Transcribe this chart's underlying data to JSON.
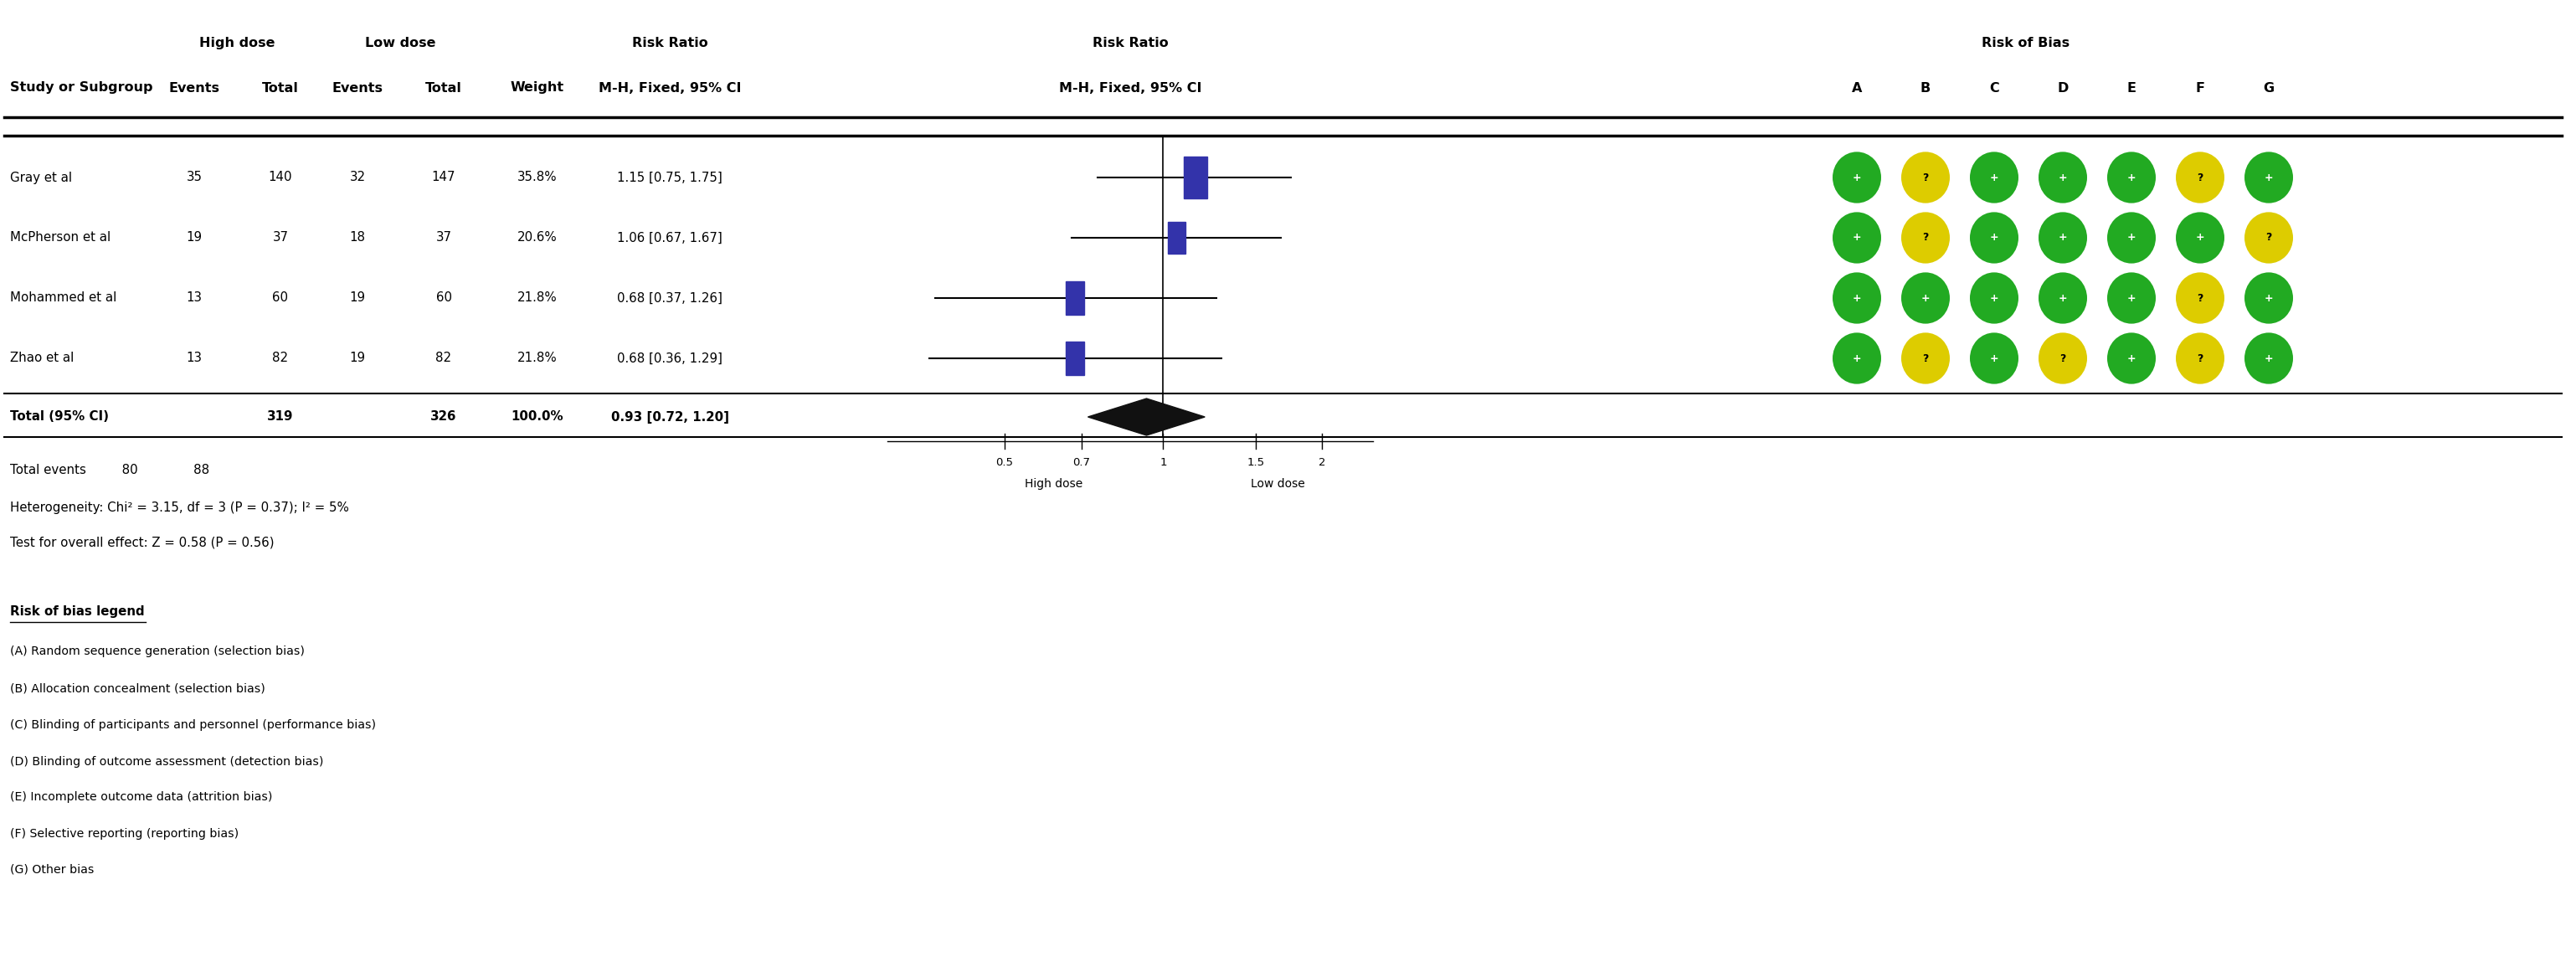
{
  "studies": [
    "Gray et al",
    "McPherson et al",
    "Mohammed et al",
    "Zhao et al"
  ],
  "high_dose_events": [
    35,
    19,
    13,
    13
  ],
  "high_dose_total": [
    140,
    37,
    60,
    82
  ],
  "low_dose_events": [
    32,
    18,
    19,
    19
  ],
  "low_dose_total": [
    147,
    37,
    60,
    82
  ],
  "weights": [
    "35.8%",
    "20.6%",
    "21.8%",
    "21.8%"
  ],
  "rr_text": [
    "1.15 [0.75, 1.75]",
    "1.06 [0.67, 1.67]",
    "0.68 [0.37, 1.26]",
    "0.68 [0.36, 1.29]"
  ],
  "rr_point": [
    1.15,
    1.06,
    0.68,
    0.68
  ],
  "rr_low": [
    0.75,
    0.67,
    0.37,
    0.36
  ],
  "rr_high": [
    1.75,
    1.67,
    1.26,
    1.29
  ],
  "marker_weights": [
    35.8,
    20.6,
    21.8,
    21.8
  ],
  "total_high": 319,
  "total_low": 326,
  "total_weight": "100.0%",
  "total_rr": "0.93 [0.72, 1.20]",
  "total_rr_point": 0.93,
  "total_rr_low": 0.72,
  "total_rr_high": 1.2,
  "total_events_high": 80,
  "total_events_low": 88,
  "heterogeneity": "Heterogeneity: Chi² = 3.15, df = 3 (P = 0.37); I² = 5%",
  "overall_effect": "Test for overall effect: Z = 0.58 (P = 0.56)",
  "forest_xlabel_left": "High dose",
  "forest_xlabel_right": "Low dose",
  "rob_data": [
    [
      "+",
      "?",
      "+",
      "+",
      "+",
      "?",
      "+"
    ],
    [
      "+",
      "?",
      "+",
      "+",
      "+",
      "+",
      "?"
    ],
    [
      "+",
      "+",
      "+",
      "+",
      "+",
      "?",
      "+"
    ],
    [
      "+",
      "?",
      "+",
      "?",
      "+",
      "?",
      "+"
    ]
  ],
  "rob_colors": [
    [
      "green",
      "yellow",
      "green",
      "green",
      "green",
      "yellow",
      "green"
    ],
    [
      "green",
      "yellow",
      "green",
      "green",
      "green",
      "green",
      "yellow"
    ],
    [
      "green",
      "green",
      "green",
      "green",
      "green",
      "yellow",
      "green"
    ],
    [
      "green",
      "yellow",
      "green",
      "yellow",
      "green",
      "yellow",
      "green"
    ]
  ],
  "legend_title": "Risk of bias legend",
  "legend_items": [
    "(A) Random sequence generation (selection bias)",
    "(B) Allocation concealment (selection bias)",
    "(C) Blinding of participants and personnel (performance bias)",
    "(D) Blinding of outcome assessment (detection bias)",
    "(E) Incomplete outcome data (attrition bias)",
    "(F) Selective reporting (reporting bias)",
    "(G) Other bias"
  ],
  "bg_color": "#ffffff",
  "text_color": "#000000",
  "marker_color": "#3333aa",
  "diamond_color": "#111111",
  "green_color": "#22aa22",
  "yellow_color": "#ddcc00",
  "xf_min": 0.3,
  "xf_max": 2.5,
  "ticks": [
    0.5,
    0.7,
    1.0,
    1.5,
    2.0
  ],
  "tick_labels": [
    "0.5",
    "0.7",
    "1",
    "1.5",
    "2"
  ]
}
